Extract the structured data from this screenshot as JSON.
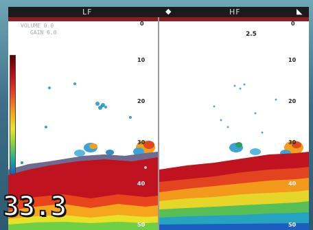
{
  "status_bar": {
    "left_label": "LF",
    "right_label": "HF",
    "left_glyph": "◆",
    "right_glyph": "◣"
  },
  "left_pane": {
    "info_line_1": "VOLUME 0.0",
    "info_line_2": "GAIN 6.0",
    "depth_ticks": [
      "0",
      "10",
      "20",
      "30",
      "40",
      "50"
    ]
  },
  "right_pane": {
    "frequency": "2.5",
    "depth_ticks": [
      "0",
      "10",
      "20",
      "30",
      "40",
      "50"
    ]
  },
  "depth_readout": "33.3",
  "colors": {
    "bottom_echo": "#c1121f",
    "water": "#ffffff",
    "frame": "#1b1b1b"
  }
}
